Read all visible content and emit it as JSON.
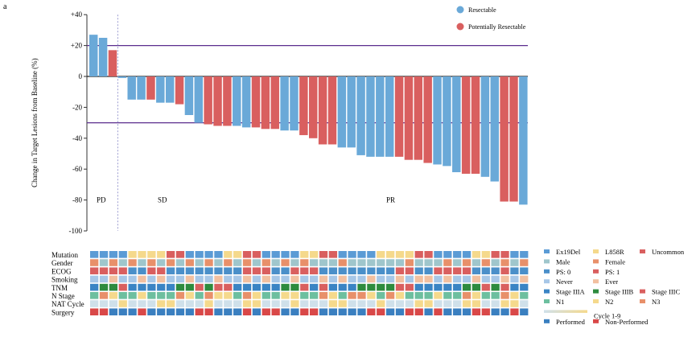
{
  "panel_label": "a",
  "chart_data": {
    "type": "bar",
    "ylabel": "Change in Target Lesions from Baseline (%)",
    "ylim": [
      -100,
      40
    ],
    "yticks": [
      40,
      20,
      0,
      -20,
      -40,
      -60,
      -80,
      -100
    ],
    "ytick_labels": [
      "+40",
      "+20",
      "0",
      "-20",
      "-40",
      "-60",
      "-80",
      "-100"
    ],
    "reference_lines": [
      20,
      -30
    ],
    "legend_position": "top-right",
    "series": [
      {
        "name": "Resectable",
        "color": "#6aa9d8"
      },
      {
        "name": "Potentially Resectable",
        "color": "#d95f5f"
      }
    ],
    "values": [
      27,
      25,
      17,
      -1,
      -15,
      -15,
      -15,
      -17,
      -17,
      -18,
      -25,
      -30,
      -31,
      -32,
      -32,
      -32,
      -33,
      -33,
      -34,
      -34,
      -35,
      -35,
      -38,
      -40,
      -44,
      -44,
      -46,
      -46,
      -51,
      -52,
      -52,
      -52,
      -52,
      -54,
      -54,
      -56,
      -57,
      -58,
      -62,
      -63,
      -63,
      -65,
      -68,
      -81,
      -81,
      -83
    ],
    "groups": [
      0,
      0,
      1,
      0,
      0,
      0,
      1,
      0,
      0,
      1,
      0,
      0,
      1,
      1,
      1,
      0,
      0,
      1,
      1,
      1,
      0,
      0,
      1,
      1,
      1,
      1,
      0,
      0,
      0,
      0,
      0,
      0,
      1,
      1,
      1,
      1,
      0,
      0,
      0,
      1,
      1,
      0,
      0,
      1,
      1,
      0
    ],
    "regions": [
      {
        "label": "PD"
      },
      {
        "label": "SD"
      },
      {
        "label": "PR"
      }
    ]
  },
  "heatmap": {
    "rows": [
      "Mutation",
      "Gender",
      "ECOG",
      "Smoking",
      "TNM",
      "N Stage",
      "NAT Cycle",
      "Surgery"
    ],
    "row_palettes": [
      [
        "#5b9bd5",
        "#f5d98c",
        "#d95f5f"
      ],
      [
        "#9fc6cc",
        "#e8906a"
      ],
      [
        "#4a8fc9",
        "#d95f5f"
      ],
      [
        "#a7c7e7",
        "#f2c0a0"
      ],
      [
        "#3a84c4",
        "#2e8b3e",
        "#d95f5f"
      ],
      [
        "#6dbf9f",
        "#f5d98c",
        "#e8906a"
      ],
      [
        "#cfe0ea",
        "#f5d98c"
      ],
      [
        "#3a7fc0",
        "#d94848"
      ]
    ]
  },
  "legend2": {
    "items": [
      {
        "label": "Ex19Del",
        "color": "#5b9bd5"
      },
      {
        "label": "L858R",
        "color": "#f5d98c"
      },
      {
        "label": "Uncommon",
        "color": "#d95f5f"
      },
      {
        "label": "Male",
        "color": "#9fc6cc"
      },
      {
        "label": "Female",
        "color": "#e8906a"
      },
      {
        "label": "PS: 0",
        "color": "#4a8fc9"
      },
      {
        "label": "PS: 1",
        "color": "#d95f5f"
      },
      {
        "label": "Never",
        "color": "#a7c7e7"
      },
      {
        "label": "Ever",
        "color": "#f2c0a0"
      },
      {
        "label": "Stage IIIA",
        "color": "#3a84c4"
      },
      {
        "label": "Stage IIIB",
        "color": "#2e8b3e"
      },
      {
        "label": "Stage IIIC",
        "color": "#d95f5f"
      },
      {
        "label": "N1",
        "color": "#6dbf9f"
      },
      {
        "label": "N2",
        "color": "#f5d98c"
      },
      {
        "label": "N3",
        "color": "#e8906a"
      },
      {
        "label": "Cycle 1-9",
        "color": "#d4c4a0"
      },
      {
        "label": "Performed",
        "color": "#3a7fc0"
      },
      {
        "label": "Non-Performed",
        "color": "#d94848"
      }
    ]
  }
}
